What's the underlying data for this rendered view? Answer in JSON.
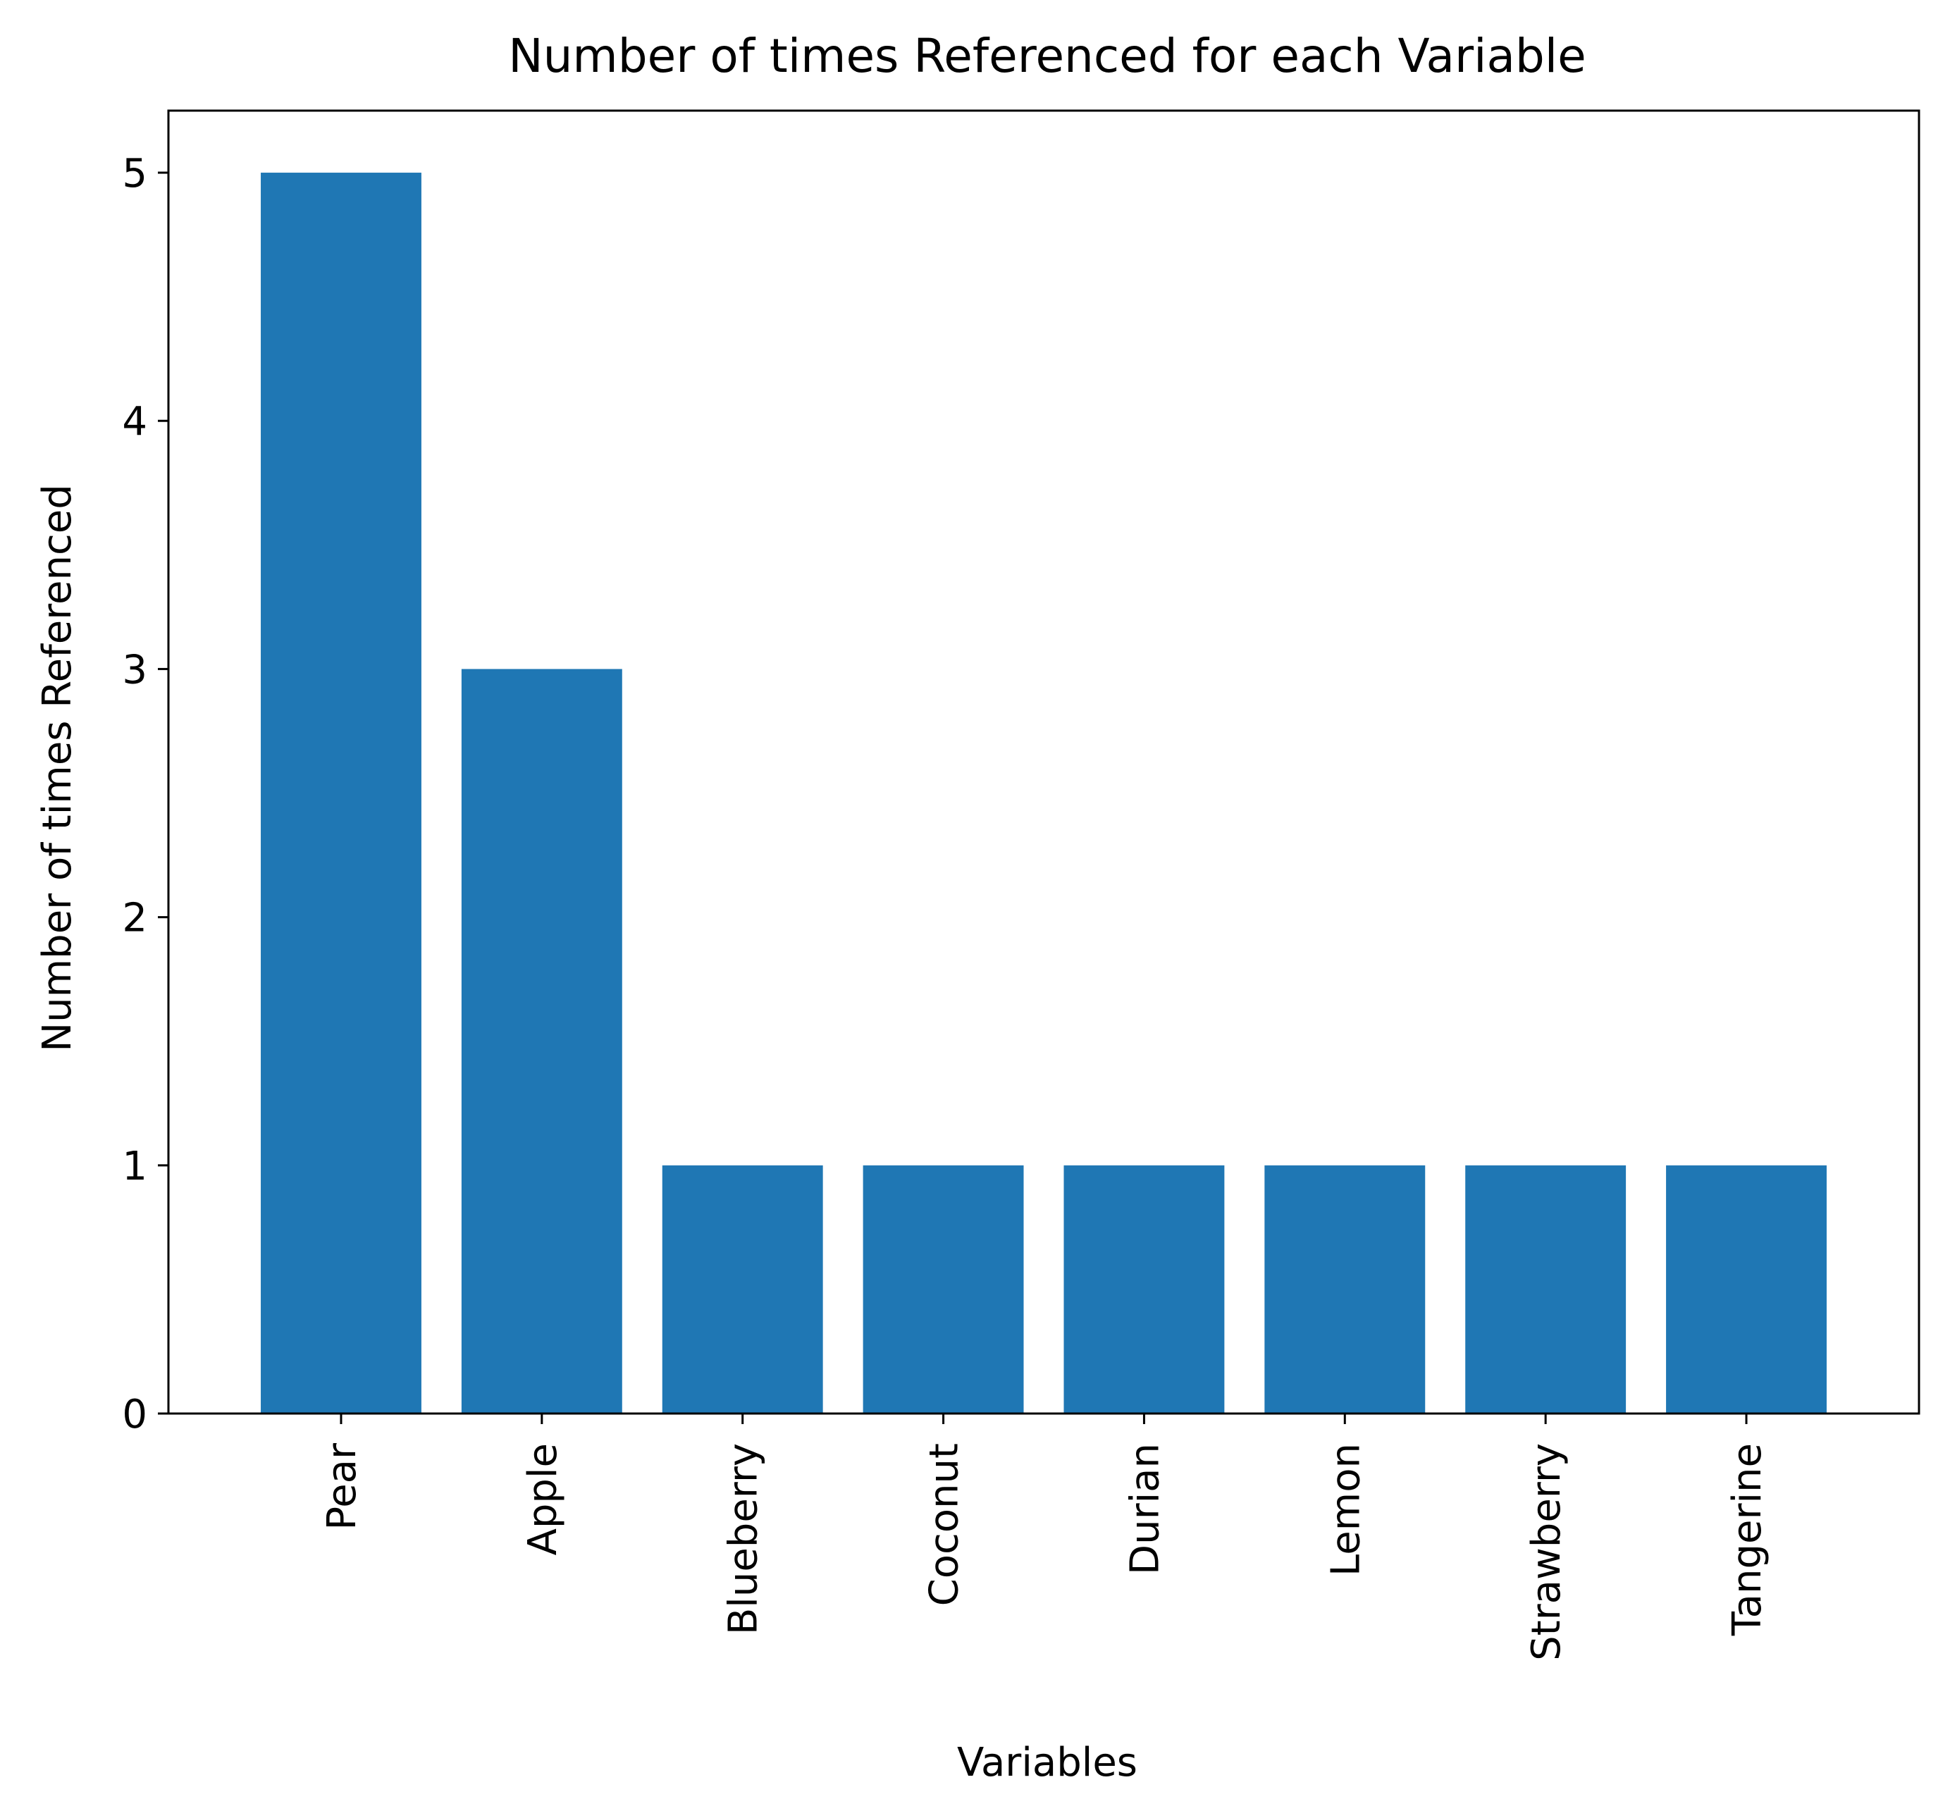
{
  "chart_data": {
    "type": "bar",
    "title": "Number of times Referenced for each Variable",
    "xlabel": "Variables",
    "ylabel": "Number of times Referenced",
    "categories": [
      "Pear",
      "Apple",
      "Blueberry",
      "Coconut",
      "Durian",
      "Lemon",
      "Strawberry",
      "Tangerine"
    ],
    "values": [
      5,
      3,
      1,
      1,
      1,
      1,
      1,
      1
    ],
    "ylim": [
      0,
      5.25
    ],
    "yticks": [
      0,
      1,
      2,
      3,
      4,
      5
    ],
    "grid": false,
    "legend": "none",
    "colors": {
      "bar": "#1f77b4",
      "axes": "#000000",
      "background": "#ffffff"
    }
  }
}
